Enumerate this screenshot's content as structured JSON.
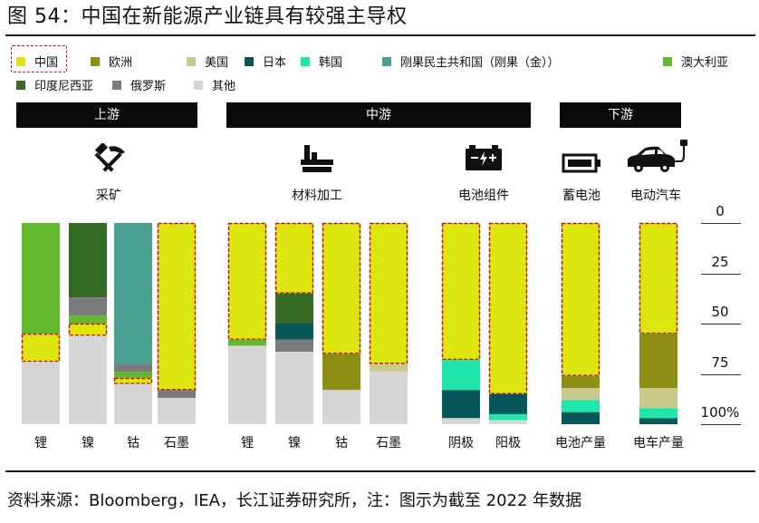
{
  "figure": {
    "title": "图 54：中国在新能源产业链具有较强主导权",
    "source": "资料来源：Bloomberg，IEA，长江证券研究所，注：图示为截至 2022 年数据"
  },
  "colors": {
    "中国": "#dde60e",
    "欧洲": "#8c8f14",
    "美国": "#c9c98a",
    "日本": "#08575a",
    "韩国": "#21e6ab",
    "刚果民主共和国（刚果（金））": "#4b9f91",
    "澳大利亚": "#63b92c",
    "印度尼西亚": "#366b26",
    "俄罗斯": "#7a7a7a",
    "其他": "#d6d6d6",
    "highlight": "#c8102e",
    "header_bg": "#0a0a0a"
  },
  "legend": [
    {
      "name": "中国",
      "highlighted": true
    },
    {
      "name": "欧洲"
    },
    {
      "name": "美国"
    },
    {
      "name": "日本"
    },
    {
      "name": "韩国"
    },
    {
      "name": "刚果民主共和国（刚果（金））"
    },
    {
      "name": "澳大利亚"
    },
    {
      "name": "印度尼西亚"
    },
    {
      "name": "俄罗斯"
    },
    {
      "name": "其他"
    }
  ],
  "stages": [
    {
      "label": "上游",
      "groups": [
        0
      ]
    },
    {
      "label": "中游",
      "groups": [
        1,
        2
      ]
    },
    {
      "label": "下游",
      "groups": [
        3,
        4
      ]
    }
  ],
  "groups": [
    {
      "label": "采矿",
      "icon": "hammer-pick-icon"
    },
    {
      "label": "材料加工",
      "icon": "factory-icon"
    },
    {
      "label": "电池组件",
      "icon": "battery-cell-icon"
    },
    {
      "label": "蓄电池",
      "icon": "battery-icon"
    },
    {
      "label": "电动汽车",
      "icon": "electric-car-icon"
    }
  ],
  "right_axis": {
    "ticks": [
      "0",
      "25",
      "50",
      "75",
      "100%"
    ]
  },
  "chart_data": {
    "type": "bar",
    "orientation": "vertical-stacked-100-percent",
    "ylim": [
      0,
      100
    ],
    "y_axis_side": "right",
    "categories": [
      "锂",
      "镍",
      "钴",
      "石墨",
      "锂",
      "镍",
      "钴",
      "石墨",
      "阴极",
      "阳极",
      "电池产量",
      "电车产量"
    ],
    "category_groups": [
      "采矿",
      "采矿",
      "采矿",
      "采矿",
      "材料加工",
      "材料加工",
      "材料加工",
      "材料加工",
      "电池组件",
      "电池组件",
      "蓄电池",
      "电动汽车"
    ],
    "stacks_top_to_bottom": [
      [
        {
          "s": "澳大利亚",
          "v": 55
        },
        {
          "s": "中国",
          "v": 14
        },
        {
          "s": "其他",
          "v": 31
        }
      ],
      [
        {
          "s": "印度尼西亚",
          "v": 37
        },
        {
          "s": "俄罗斯",
          "v": 9
        },
        {
          "s": "澳大利亚",
          "v": 4
        },
        {
          "s": "中国",
          "v": 6
        },
        {
          "s": "其他",
          "v": 44
        }
      ],
      [
        {
          "s": "刚果民主共和国（刚果（金））",
          "v": 70
        },
        {
          "s": "俄罗斯",
          "v": 4
        },
        {
          "s": "澳大利亚",
          "v": 3
        },
        {
          "s": "中国",
          "v": 3
        },
        {
          "s": "其他",
          "v": 20
        }
      ],
      [
        {
          "s": "中国",
          "v": 83
        },
        {
          "s": "俄罗斯",
          "v": 4
        },
        {
          "s": "其他",
          "v": 13
        }
      ],
      [
        {
          "s": "中国",
          "v": 58
        },
        {
          "s": "澳大利亚",
          "v": 3
        },
        {
          "s": "其他",
          "v": 39
        }
      ],
      [
        {
          "s": "中国",
          "v": 35
        },
        {
          "s": "印度尼西亚",
          "v": 15
        },
        {
          "s": "日本",
          "v": 8
        },
        {
          "s": "俄罗斯",
          "v": 6
        },
        {
          "s": "其他",
          "v": 36
        }
      ],
      [
        {
          "s": "中国",
          "v": 65
        },
        {
          "s": "欧洲",
          "v": 18
        },
        {
          "s": "其他",
          "v": 17
        }
      ],
      [
        {
          "s": "中国",
          "v": 70
        },
        {
          "s": "美国",
          "v": 4
        },
        {
          "s": "其他",
          "v": 26
        }
      ],
      [
        {
          "s": "中国",
          "v": 68
        },
        {
          "s": "韩国",
          "v": 15
        },
        {
          "s": "日本",
          "v": 14
        },
        {
          "s": "其他",
          "v": 3
        }
      ],
      [
        {
          "s": "中国",
          "v": 85
        },
        {
          "s": "日本",
          "v": 10
        },
        {
          "s": "韩国",
          "v": 3
        },
        {
          "s": "其他",
          "v": 2
        }
      ],
      [
        {
          "s": "中国",
          "v": 76
        },
        {
          "s": "欧洲",
          "v": 6
        },
        {
          "s": "美国",
          "v": 6
        },
        {
          "s": "韩国",
          "v": 6
        },
        {
          "s": "日本",
          "v": 6
        }
      ],
      [
        {
          "s": "中国",
          "v": 55
        },
        {
          "s": "欧洲",
          "v": 27
        },
        {
          "s": "美国",
          "v": 10
        },
        {
          "s": "韩国",
          "v": 5
        },
        {
          "s": "日本",
          "v": 3
        }
      ]
    ],
    "highlighted_series": "中国"
  }
}
